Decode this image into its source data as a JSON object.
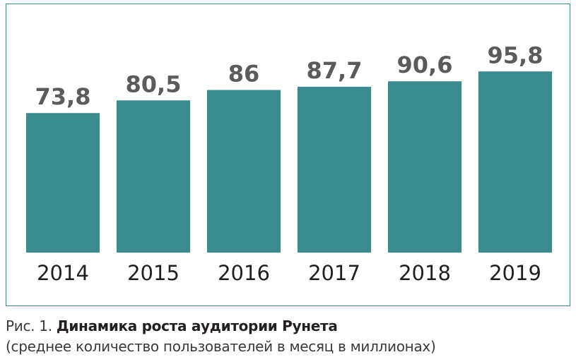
{
  "chart_data": {
    "type": "bar",
    "categories": [
      "2014",
      "2015",
      "2016",
      "2017",
      "2018",
      "2019"
    ],
    "values": [
      73.8,
      80.5,
      86,
      87.7,
      90.6,
      95.8
    ],
    "value_labels": [
      "73,8",
      "80,5",
      "86",
      "87,7",
      "90,6",
      "95,8"
    ],
    "ylim": [
      0,
      100
    ],
    "grid": false,
    "bar_color": "#3b8c8e",
    "label_color": "#5a5b5d",
    "frame_color": "#3f8b8b"
  },
  "caption": {
    "prefix": "Рис. 1.",
    "title": "Динамика роста аудитории Рунета",
    "subtitle": "(среднее количество пользователей в месяц в миллионах)"
  }
}
